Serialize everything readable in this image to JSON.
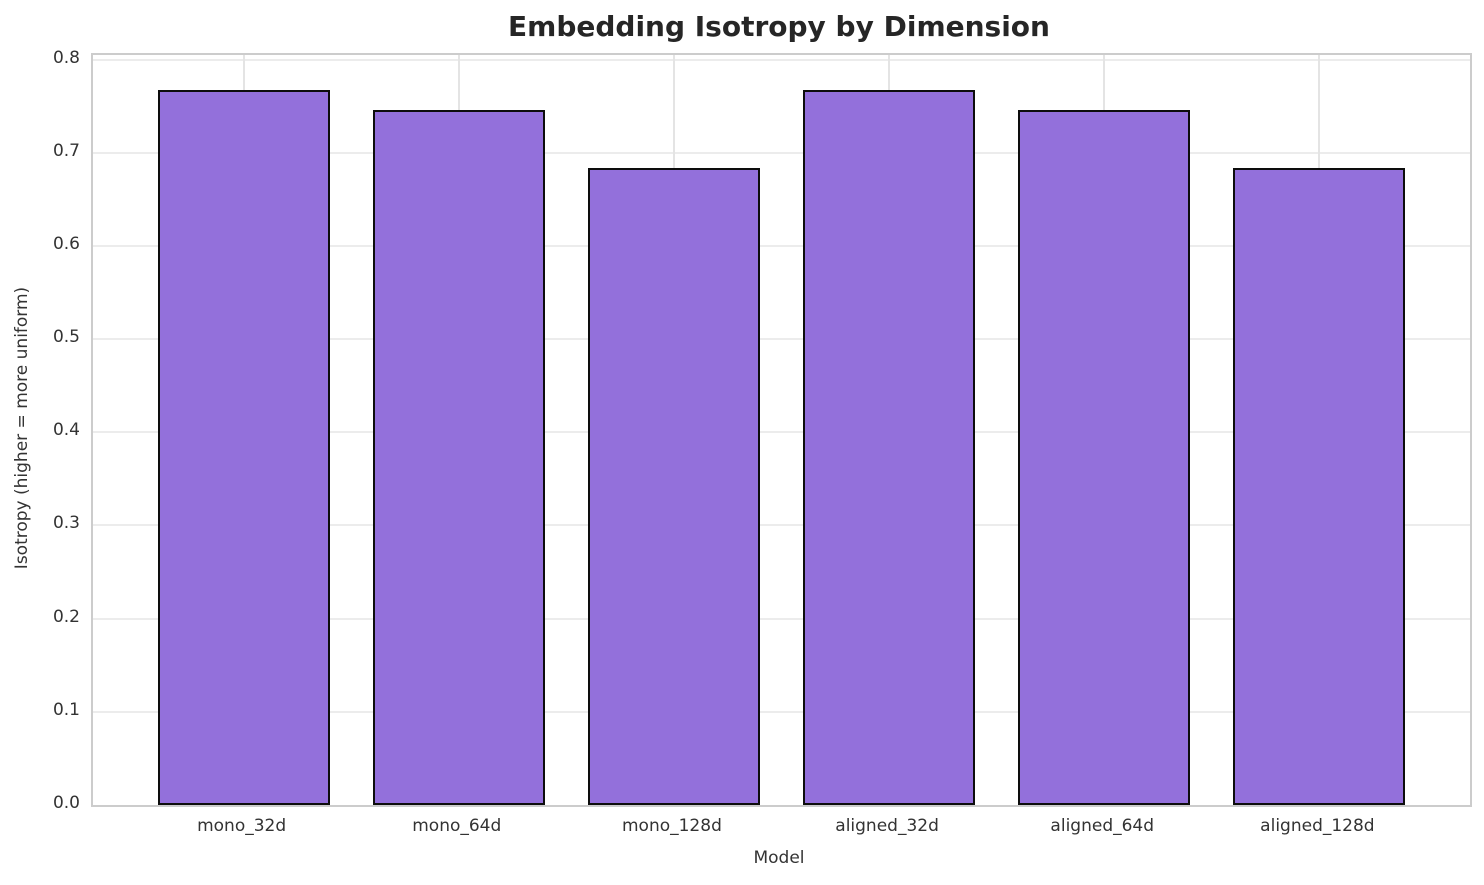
{
  "chart_data": {
    "type": "bar",
    "title": "Embedding Isotropy by Dimension",
    "xlabel": "Model",
    "ylabel": "Isotropy (higher = more uniform)",
    "categories": [
      "mono_32d",
      "mono_64d",
      "mono_128d",
      "aligned_32d",
      "aligned_64d",
      "aligned_128d"
    ],
    "values": [
      0.767,
      0.746,
      0.684,
      0.767,
      0.746,
      0.684
    ],
    "yticks": [
      0.0,
      0.1,
      0.2,
      0.3,
      0.4,
      0.5,
      0.6,
      0.7,
      0.8
    ],
    "ytick_labels": [
      "0.0",
      "0.1",
      "0.2",
      "0.3",
      "0.4",
      "0.5",
      "0.6",
      "0.7",
      "0.8"
    ],
    "ylim": [
      0,
      0.805
    ],
    "xlim": [
      -0.7,
      5.7
    ],
    "bar_width": 0.8,
    "grid": true,
    "legend": false,
    "bar_color": "#9370DB",
    "bar_edge_color": "#0d0d0d",
    "grid_color": "#e8e8e8",
    "spine_color": "#cccccc",
    "title_color": "#262626",
    "tick_color": "#333333"
  }
}
